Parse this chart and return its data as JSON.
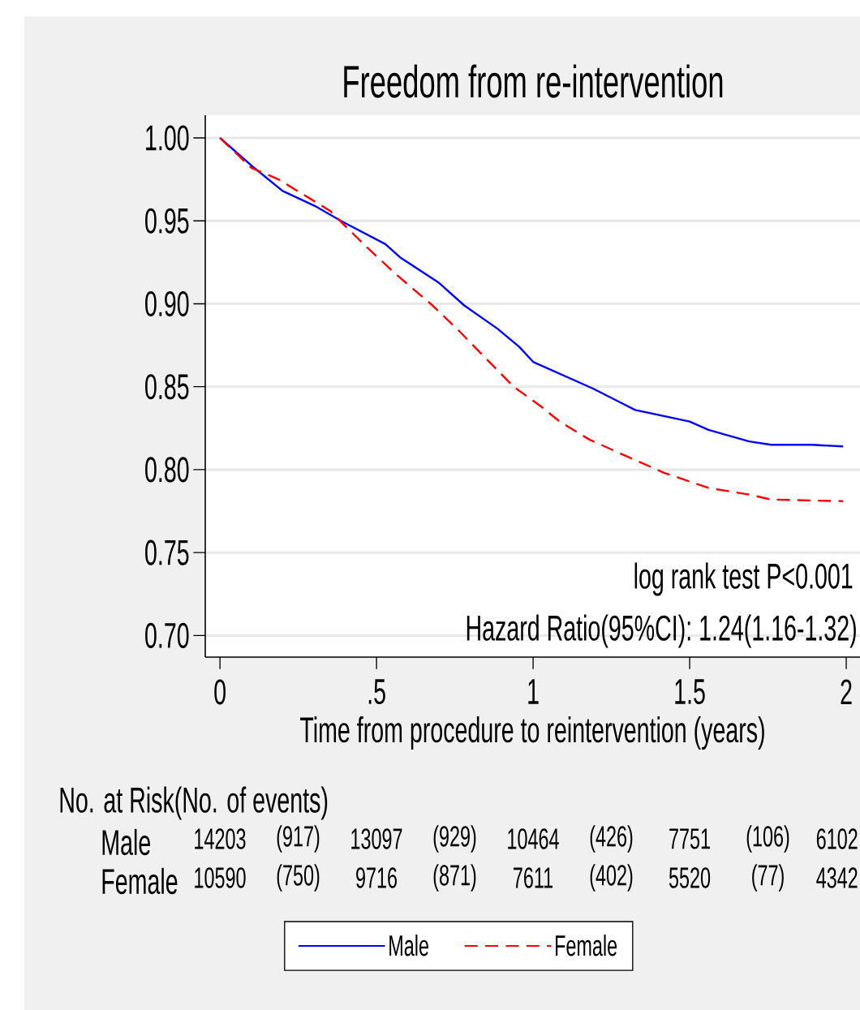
{
  "chart_data": {
    "type": "line",
    "title": "Freedom from re-intervention",
    "xlabel": "Time from procedure to reintervention (years)",
    "xlim": [
      -0.047,
      2.044
    ],
    "ylim": [
      0.687,
      1.0137
    ],
    "xticks": [
      0,
      {
        "value": 0.5,
        "label": ".5"
      },
      1,
      1.5,
      2
    ],
    "yticks": [
      {
        "value": 0.7,
        "label": "0.70"
      },
      {
        "value": 0.75,
        "label": "0.75"
      },
      {
        "value": 0.8,
        "label": "0.80"
      },
      {
        "value": 0.85,
        "label": "0.85"
      },
      {
        "value": 0.9,
        "label": "0.90"
      },
      {
        "value": 0.95,
        "label": "0.95"
      },
      {
        "value": 1.0,
        "label": "1.00"
      }
    ],
    "grid": "y",
    "legend": "bottom",
    "marker": "none",
    "series": [
      {
        "name": "Male",
        "color": "#0000ff",
        "line_style": "solid",
        "x": [
          0,
          0.109,
          0.2,
          0.303,
          0.386,
          0.528,
          0.575,
          0.697,
          0.78,
          0.886,
          0.956,
          1.0,
          1.19,
          1.326,
          1.5,
          1.56,
          1.69,
          1.76,
          1.89,
          1.99
        ],
        "values": [
          1.0,
          0.982,
          0.968,
          0.959,
          0.95,
          0.936,
          0.928,
          0.913,
          0.899,
          0.885,
          0.874,
          0.865,
          0.849,
          0.836,
          0.829,
          0.824,
          0.817,
          0.815,
          0.815,
          0.814
        ]
      },
      {
        "name": "Female",
        "color": "#ff0000",
        "line_style": "dashed",
        "x": [
          0,
          0.1,
          0.187,
          0.352,
          0.394,
          0.464,
          0.567,
          0.679,
          0.767,
          0.834,
          0.938,
          1.026,
          1.085,
          1.181,
          1.3,
          1.42,
          1.56,
          1.69,
          1.76,
          1.99
        ],
        "values": [
          1.0,
          0.982,
          0.975,
          0.956,
          0.948,
          0.935,
          0.917,
          0.899,
          0.883,
          0.87,
          0.85,
          0.838,
          0.829,
          0.818,
          0.808,
          0.798,
          0.789,
          0.785,
          0.782,
          0.781
        ]
      }
    ],
    "annotations": [
      "log rank test P<0.001",
      "Hazard Ratio(95%CI): 1.24(1.16-1.32)",
      "No. at Risk(No. of events)",
      "Male",
      "14203",
      "(917)",
      "13097",
      "(929)",
      "10464",
      "(426)",
      "7751",
      "(106)",
      "6102",
      "Female",
      "10590",
      "(750)",
      "9716",
      "(871)",
      "7611",
      "(402)",
      "5520",
      "(77)",
      "4342"
    ]
  }
}
